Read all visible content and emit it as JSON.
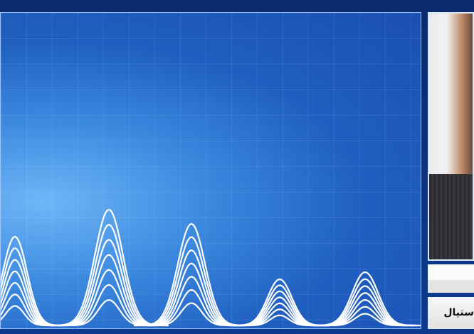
{
  "colors": {
    "background": "#0b2f7a",
    "panel": "#1f5fc0",
    "wave": "#ffffff"
  },
  "side_panel": {
    "caption": "ستيال"
  }
}
